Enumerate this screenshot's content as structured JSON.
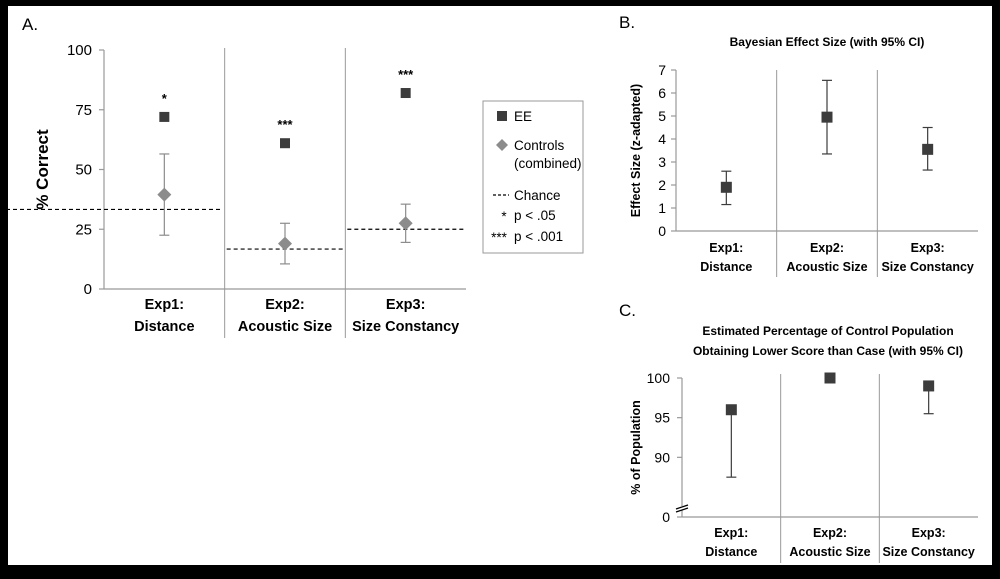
{
  "colors": {
    "ee": "#3c3c3c",
    "controls": "#8c8c8c",
    "axis": "#999999",
    "text": "#000000",
    "background": "#ffffff",
    "frame": "#000000"
  },
  "chart_data": [
    {
      "panel": "A.",
      "type": "scatter",
      "title": "",
      "ylabel": "% Correct",
      "xlabel": "",
      "ylim": [
        0,
        100
      ],
      "yticks": [
        0,
        25,
        50,
        75,
        100
      ],
      "categories": [
        [
          "Exp1:",
          "Distance"
        ],
        [
          "Exp2:",
          "Acoustic Size"
        ],
        [
          "Exp3:",
          "Size Constancy"
        ]
      ],
      "series": [
        {
          "name": "EE",
          "marker": "square",
          "values": [
            72,
            61,
            82
          ]
        },
        {
          "name": "Controls (combined)",
          "marker": "diamond",
          "values": [
            39.5,
            19,
            27.5
          ],
          "error_low": [
            22.5,
            10.5,
            19.5
          ],
          "error_high": [
            56.5,
            27.5,
            35.5
          ]
        }
      ],
      "chance": [
        33.3,
        16.7,
        25
      ],
      "significance": [
        "*",
        "***",
        "***"
      ],
      "legend": {
        "placement": "right",
        "entries": [
          {
            "symbol": "square",
            "label": "EE"
          },
          {
            "symbol": "diamond",
            "label": [
              "Controls",
              "(combined)"
            ]
          },
          {
            "symbol": "dash",
            "label": "Chance"
          },
          {
            "symbol": "*",
            "label": "p < .05"
          },
          {
            "symbol": "***",
            "label": "p < .001"
          }
        ]
      }
    },
    {
      "panel": "B.",
      "type": "scatter",
      "title": "Bayesian Effect Size (with 95% CI)",
      "ylabel": "Effect Size (z-adapted)",
      "ylim": [
        0,
        7
      ],
      "yticks": [
        0,
        1,
        2,
        3,
        4,
        5,
        6,
        7
      ],
      "categories": [
        [
          "Exp1:",
          "Distance"
        ],
        [
          "Exp2:",
          "Acoustic Size"
        ],
        [
          "Exp3:",
          "Size Constancy"
        ]
      ],
      "values": [
        1.9,
        4.95,
        3.55
      ],
      "error_low": [
        1.15,
        3.35,
        2.65
      ],
      "error_high": [
        2.6,
        6.55,
        4.5
      ]
    },
    {
      "panel": "C.",
      "type": "scatter",
      "title": [
        "Estimated Percentage of Control Population",
        "Obtaining Lower Score than Case (with 95% CI)"
      ],
      "ylabel": "% of Population",
      "ylim": [
        85,
        100
      ],
      "yticks": [
        0,
        90,
        95,
        100
      ],
      "axis_break": true,
      "categories": [
        [
          "Exp1:",
          "Distance"
        ],
        [
          "Exp2:",
          "Acoustic Size"
        ],
        [
          "Exp3:",
          "Size Constancy"
        ]
      ],
      "values": [
        96,
        100,
        99
      ],
      "error_low": [
        87.5,
        100,
        95.5
      ],
      "error_high": [
        96,
        100,
        99
      ]
    }
  ]
}
